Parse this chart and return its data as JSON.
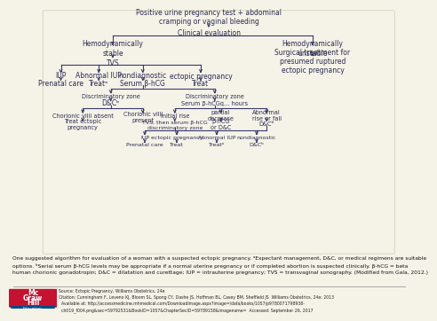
{
  "bg_color": "#f5f3e8",
  "line_color": "#3a3a6e",
  "text_color": "#2a2a50",
  "font_size": 5.5,
  "caption": "One suggested algorithm for evaluation of a woman with a suspected ectopic pregnancy. ᵃExpectant management, D&C, or medical regimens are suitable\noptions. ᵇSerial serum β-hCG levels may be appropriate if a normal uterine pregnancy or if completed abortion is suspected clinically. β-hCG = beta\nhuman chorionic gonadotropin; D&C = dilatation and curettage; IUP = intrauterine pregnancy; TVS = transvaginal sonography. (Modified from Gala, 2012.)",
  "source_line1": "Source: Ectopic Pregnancy, Williams Obstetrics, 24e",
  "source_line2": "Citation: Cunningham F, Leveno KJ, Bloom SL, Spong CY, Dashe JS, Hoffman BL, Casey BM, Sheffield JS  Williams Obstetrics, 24e; 2013",
  "source_line3": "  Available at: http://accessmedicine.mhmedical.com/DownloadImage.aspx?image=/data/books/1057/p9780071798938-",
  "source_line4": "  ch019_f004.png&sec=59792531&BookID=1057&ChapterSecID=59789158&imagename=  Accessed: September 26, 2017"
}
